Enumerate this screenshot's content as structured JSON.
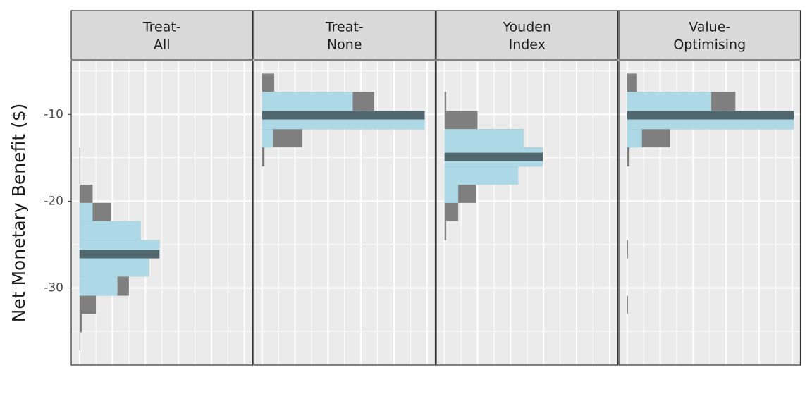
{
  "chart_data": {
    "type": "histogram",
    "y_label": "Net Monetary Benefit ($)",
    "ylim": [
      -38.9,
      -3.8
    ],
    "yticks": [
      -30,
      -20,
      -10
    ],
    "xlim": [
      -5,
      105
    ],
    "xticks": [
      0,
      20,
      40,
      60,
      80,
      100
    ],
    "grid": true,
    "colors": {
      "all": "#7f7f7f",
      "interval": "#add8e6",
      "median": "#4f676d"
    },
    "bins": [
      -5.3,
      -7.4,
      -9.6,
      -11.7,
      -13.8,
      -16.0,
      -18.1,
      -20.2,
      -22.3,
      -24.5,
      -26.6,
      -28.7,
      -30.9,
      -33.0,
      -35.1,
      -37.2
    ],
    "facets": [
      {
        "label_lines": [
          "Treat-",
          "All"
        ],
        "counts": [
          0,
          0,
          0,
          0,
          0.5,
          0.5,
          8,
          19,
          37,
          48.5,
          42,
          30,
          10,
          1.5,
          0.5
        ],
        "interval_counts": [
          0,
          0,
          0,
          0,
          0,
          0,
          0,
          8,
          37,
          48.5,
          42,
          23,
          0,
          0,
          0
        ],
        "median": -26.1
      },
      {
        "label_lines": [
          "Treat-",
          "None"
        ],
        "counts": [
          7.4,
          68,
          98.6,
          24.5,
          1.5,
          0,
          0,
          0,
          0,
          0,
          0,
          0,
          0,
          0,
          0
        ],
        "interval_counts": [
          0,
          55,
          98.6,
          6.5,
          0,
          0,
          0,
          0,
          0,
          0,
          0,
          0,
          0,
          0,
          0
        ],
        "median": -10.1
      },
      {
        "label_lines": [
          "Youden",
          "Index"
        ],
        "counts": [
          0,
          1,
          20,
          48,
          59.5,
          44.6,
          19,
          8.3,
          1,
          0,
          0,
          0,
          0,
          0,
          0
        ],
        "interval_counts": [
          0,
          0,
          0,
          48,
          59.5,
          44.6,
          8.3,
          0,
          0,
          0,
          0,
          0,
          0,
          0,
          0
        ],
        "median": -14.9
      },
      {
        "label_lines": [
          "Value-",
          "Optimising"
        ],
        "counts": [
          6,
          65.6,
          101,
          26,
          1.5,
          0,
          0,
          0,
          0,
          0.5,
          0,
          0,
          0.5,
          0,
          0
        ],
        "interval_counts": [
          0,
          51,
          101,
          9,
          0,
          0,
          0,
          0,
          0,
          0,
          0,
          0,
          0,
          0,
          0
        ],
        "median": -10.1
      }
    ]
  }
}
